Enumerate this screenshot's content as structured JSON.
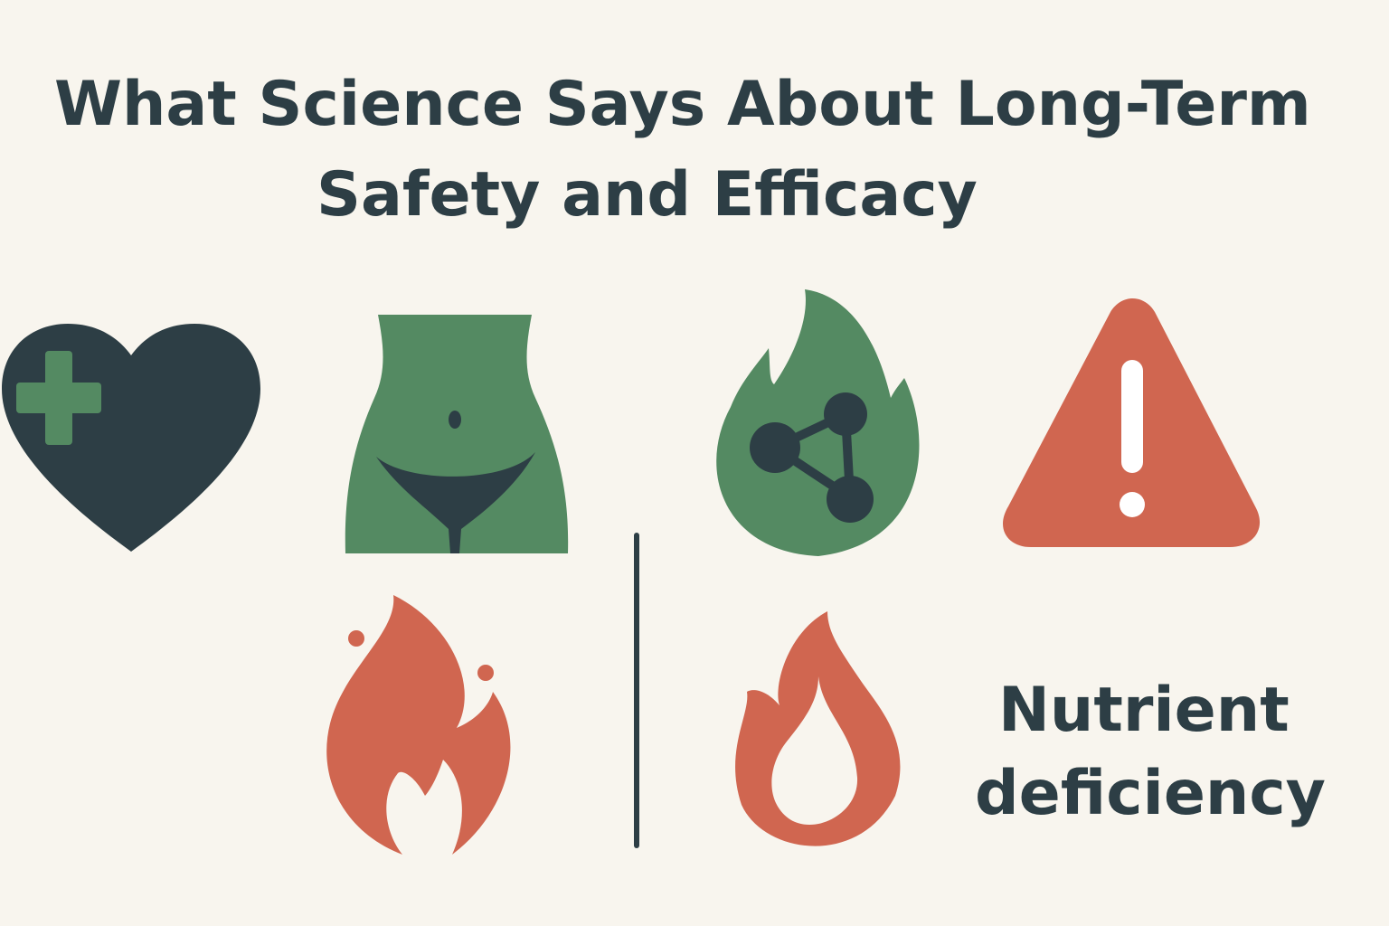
{
  "header": {
    "title_lines": [
      "What Science Says About Long-Term",
      "Safety and Efficacy"
    ]
  },
  "label": {
    "lines": [
      "Nutrient",
      "deficiency"
    ]
  }
}
